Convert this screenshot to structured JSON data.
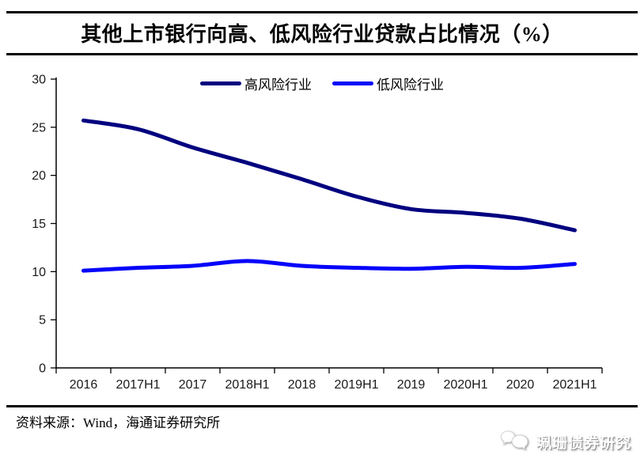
{
  "header": {
    "title": "其他上市银行向高、低风险行业贷款占比情况（%）"
  },
  "chart_data": {
    "type": "line",
    "title": "其他上市银行向高、低风险行业贷款占比情况（%）",
    "categories": [
      "2016",
      "2017H1",
      "2017",
      "2018H1",
      "2018",
      "2019H1",
      "2019",
      "2020H1",
      "2020",
      "2021H1"
    ],
    "series": [
      {
        "name": "高风险行业",
        "color": "#00007f",
        "values": [
          25.7,
          24.8,
          22.9,
          21.3,
          19.6,
          17.8,
          16.5,
          16.1,
          15.5,
          14.3
        ]
      },
      {
        "name": "低风险行业",
        "color": "#0404fa",
        "values": [
          10.1,
          10.4,
          10.6,
          11.1,
          10.6,
          10.4,
          10.3,
          10.5,
          10.4,
          10.8
        ]
      }
    ],
    "xlabel": "",
    "ylabel": "",
    "ylim": [
      0,
      30
    ],
    "yticks": [
      0,
      5,
      10,
      15,
      20,
      25,
      30
    ],
    "grid": false,
    "legend_position": "top-center",
    "smoothed": true,
    "line_width": 5
  },
  "footer": {
    "source": "资料来源：Wind，海通证券研究所"
  },
  "watermark": {
    "text": "珮珊债券研究"
  },
  "colors": {
    "axis": "#000000",
    "background": "#ffffff",
    "rule": "#000000"
  }
}
